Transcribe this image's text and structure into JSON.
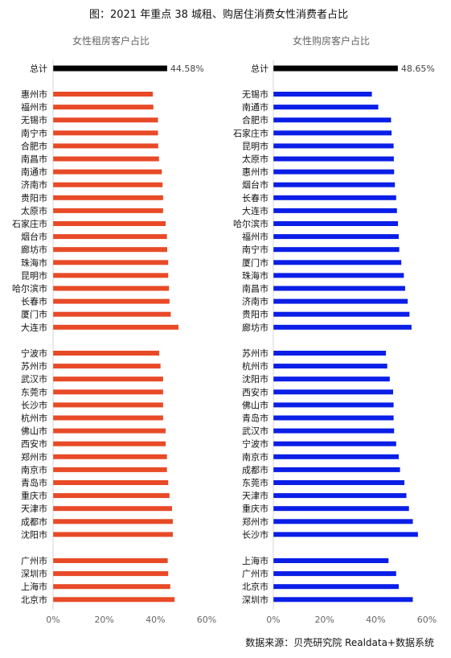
{
  "title": "图：2021 年重点 38 城租、购居住消费女性消费者占比",
  "source": "数据来源：贝壳研究院 Realdata+数据系统",
  "chart_data": [
    {
      "type": "bar",
      "orientation": "horizontal",
      "title": "女性租房客户占比",
      "xlim": [
        0,
        0.6
      ],
      "xticks": [
        "0%",
        "20%",
        "40%",
        "60%"
      ],
      "colors": {
        "total": "#000000",
        "bars": "#e84a27"
      },
      "total": {
        "label": "总计",
        "value": 0.4458,
        "value_label": "44.58%"
      },
      "groups": [
        {
          "categories": [
            "惠州市",
            "福州市",
            "无锡市",
            "南宁市",
            "合肥市",
            "南昌市",
            "南通市",
            "济南市",
            "贵阳市",
            "太原市",
            "石家庄市",
            "烟台市",
            "廊坊市",
            "珠海市",
            "昆明市",
            "哈尔滨市",
            "长春市",
            "厦门市",
            "大连市"
          ],
          "values": [
            0.39,
            0.392,
            0.41,
            0.41,
            0.411,
            0.414,
            0.425,
            0.428,
            0.43,
            0.43,
            0.44,
            0.445,
            0.446,
            0.45,
            0.45,
            0.453,
            0.455,
            0.46,
            0.49
          ]
        },
        {
          "categories": [
            "宁波市",
            "苏州市",
            "武汉市",
            "东莞市",
            "长沙市",
            "杭州市",
            "佛山市",
            "西安市",
            "郑州市",
            "南京市",
            "青岛市",
            "重庆市",
            "天津市",
            "成都市",
            "沈阳市"
          ],
          "values": [
            0.415,
            0.42,
            0.43,
            0.43,
            0.43,
            0.43,
            0.44,
            0.44,
            0.445,
            0.445,
            0.45,
            0.455,
            0.465,
            0.468,
            0.468
          ]
        },
        {
          "categories": [
            "广州市",
            "深圳市",
            "上海市",
            "北京市"
          ],
          "values": [
            0.448,
            0.45,
            0.458,
            0.475
          ]
        }
      ]
    },
    {
      "type": "bar",
      "orientation": "horizontal",
      "title": "女性购房客户占比",
      "xlim": [
        0,
        0.6
      ],
      "xticks": [
        "0%",
        "20%",
        "40%",
        "60%"
      ],
      "colors": {
        "total": "#000000",
        "bars": "#0a1ee6"
      },
      "total": {
        "label": "总计",
        "value": 0.4865,
        "value_label": "48.65%"
      },
      "groups": [
        {
          "categories": [
            "无锡市",
            "南通市",
            "合肥市",
            "石家庄市",
            "昆明市",
            "太原市",
            "惠州市",
            "烟台市",
            "长春市",
            "大连市",
            "哈尔滨市",
            "福州市",
            "南宁市",
            "厦门市",
            "珠海市",
            "南昌市",
            "济南市",
            "贵阳市",
            "廊坊市"
          ],
          "values": [
            0.385,
            0.41,
            0.46,
            0.462,
            0.47,
            0.471,
            0.472,
            0.475,
            0.48,
            0.483,
            0.487,
            0.49,
            0.492,
            0.5,
            0.51,
            0.515,
            0.525,
            0.532,
            0.54
          ]
        },
        {
          "categories": [
            "苏州市",
            "杭州市",
            "沈阳市",
            "西安市",
            "佛山市",
            "青岛市",
            "武汉市",
            "宁波市",
            "南京市",
            "成都市",
            "东莞市",
            "天津市",
            "重庆市",
            "郑州市",
            "长沙市"
          ],
          "values": [
            0.44,
            0.445,
            0.455,
            0.468,
            0.47,
            0.47,
            0.472,
            0.48,
            0.49,
            0.495,
            0.512,
            0.52,
            0.53,
            0.545,
            0.565
          ]
        },
        {
          "categories": [
            "上海市",
            "广州市",
            "北京市",
            "深圳市"
          ],
          "values": [
            0.45,
            0.48,
            0.49,
            0.545
          ]
        }
      ]
    }
  ]
}
